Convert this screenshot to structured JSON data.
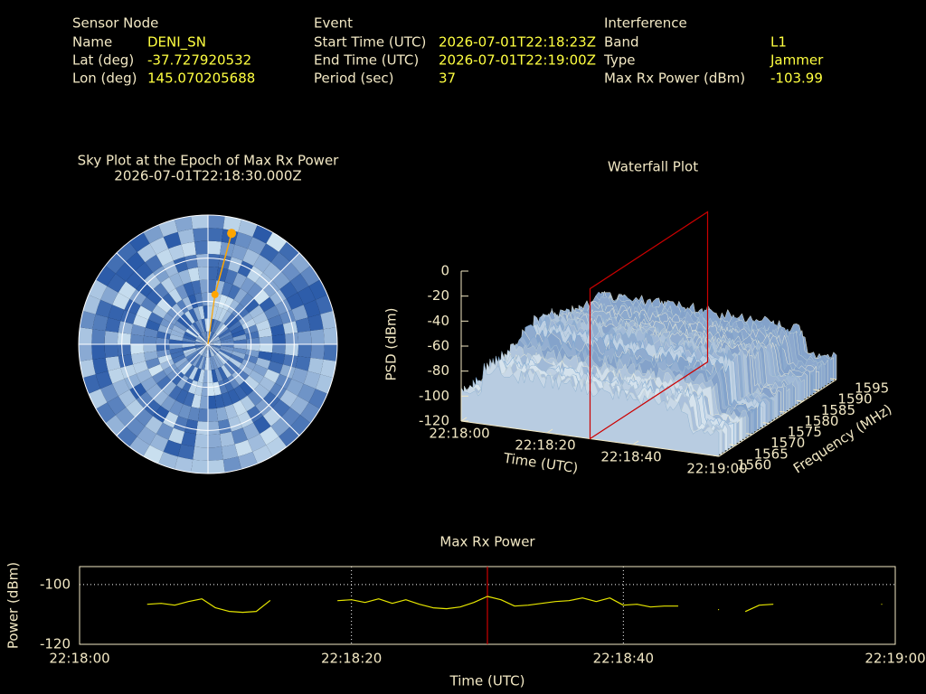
{
  "header": {
    "columns": [
      {
        "title": "Sensor Node",
        "rows": [
          [
            "Name",
            "DENI_SN"
          ],
          [
            "Lat (deg)",
            "-37.727920532"
          ],
          [
            "Lon (deg)",
            "145.070205688"
          ]
        ]
      },
      {
        "title": "Event",
        "rows": [
          [
            "Start Time (UTC)",
            "2026-07-01T22:18:23Z"
          ],
          [
            "End Time (UTC)",
            "2026-07-01T22:19:00Z"
          ],
          [
            "Period (sec)",
            "37"
          ]
        ]
      },
      {
        "title": "Interference",
        "rows": [
          [
            "Band",
            "L1"
          ],
          [
            "Type",
            "Jammer"
          ],
          [
            "Max Rx Power (dBm)",
            "-103.99"
          ]
        ]
      }
    ]
  },
  "chart_data": [
    {
      "type": "polar",
      "title": "Sky Plot at the Epoch of Max Rx Power",
      "subtitle": "2026-07-01T22:18:30.000Z",
      "rlim": [
        90,
        0
      ],
      "rticks": [
        0,
        30,
        60
      ],
      "spokes": [
        0,
        45,
        90,
        135,
        180,
        225,
        270,
        315
      ],
      "azimuth": [
        12,
        8
      ],
      "elevation": [
        11,
        55
      ],
      "color": "#ffa500"
    },
    {
      "type": "surface",
      "title": "Waterfall Plot",
      "zlabel": "PSD (dBm)",
      "xlabel": "Time (UTC)",
      "ylabel": "Frequency (MHz)",
      "xlim": [
        "22:18:00",
        "22:19:00"
      ],
      "xticks": [
        "22:18:00",
        "22:18:20",
        "22:18:40",
        "22:19:00"
      ],
      "ylim": [
        1560,
        1595
      ],
      "yticks": [
        1560,
        1565,
        1570,
        1575,
        1580,
        1585,
        1590,
        1595
      ],
      "zlim": [
        -120,
        0
      ],
      "zticks": [
        0,
        -20,
        -40,
        -60,
        -80,
        -100,
        -120
      ],
      "marker_x": "22:18:30",
      "marker_color": "#cc0000"
    },
    {
      "type": "line",
      "title": "Max Rx Power",
      "xlabel": "Time (UTC)",
      "ylabel": "Power (dBm)",
      "xlim": [
        "22:18:00",
        "22:19:00"
      ],
      "xticks": [
        "22:18:00",
        "22:18:20",
        "22:18:40",
        "22:19:00"
      ],
      "ylim": [
        -120,
        -94
      ],
      "yticks": [
        -100,
        -120
      ],
      "grid": true,
      "color": "#e6e600",
      "marker_x": "22:18:30",
      "marker_color": "#cc0000",
      "x": [
        "22:18:05",
        "22:18:06",
        "22:18:07",
        "22:18:08",
        "22:18:09",
        "22:18:10",
        "22:18:11",
        "22:18:12",
        "22:18:13",
        "22:18:14",
        "22:18:15",
        "22:18:16",
        "22:18:17",
        "22:18:18",
        "22:18:19",
        "22:18:20",
        "22:18:21",
        "22:18:22",
        "22:18:23",
        "22:18:24",
        "22:18:25",
        "22:18:26",
        "22:18:27",
        "22:18:28",
        "22:18:29",
        "22:18:30",
        "22:18:31",
        "22:18:32",
        "22:18:33",
        "22:18:34",
        "22:18:35",
        "22:18:36",
        "22:18:37",
        "22:18:38",
        "22:18:39",
        "22:18:40",
        "22:18:41",
        "22:18:42",
        "22:18:43",
        "22:18:44",
        "22:18:45",
        "22:18:46",
        "22:18:47",
        "22:18:48",
        "22:18:49",
        "22:18:50",
        "22:18:51",
        "22:18:52",
        "22:18:53",
        "22:18:54",
        "22:18:55",
        "22:18:56",
        "22:18:57",
        "22:18:58",
        "22:18:59"
      ],
      "values": [
        -106.6,
        -106.3,
        -106.9,
        -105.7,
        -104.8,
        -107.8,
        -109,
        -109.3,
        -109,
        -105.4,
        null,
        null,
        null,
        null,
        -105.4,
        -105.1,
        -106,
        -104.8,
        -106.3,
        -105.1,
        -106.6,
        -107.8,
        -108.1,
        -107.5,
        -106,
        -103.99,
        -105.1,
        -107.2,
        -106.9,
        -106.3,
        -105.7,
        -105.4,
        -104.5,
        -105.7,
        -104.5,
        -106.9,
        -106.6,
        -107.5,
        -107.2,
        -107.2,
        null,
        null,
        -108.4,
        null,
        -109,
        -106.9,
        -106.6,
        null,
        null,
        null,
        null,
        null,
        null,
        null,
        -106.6
      ]
    }
  ]
}
